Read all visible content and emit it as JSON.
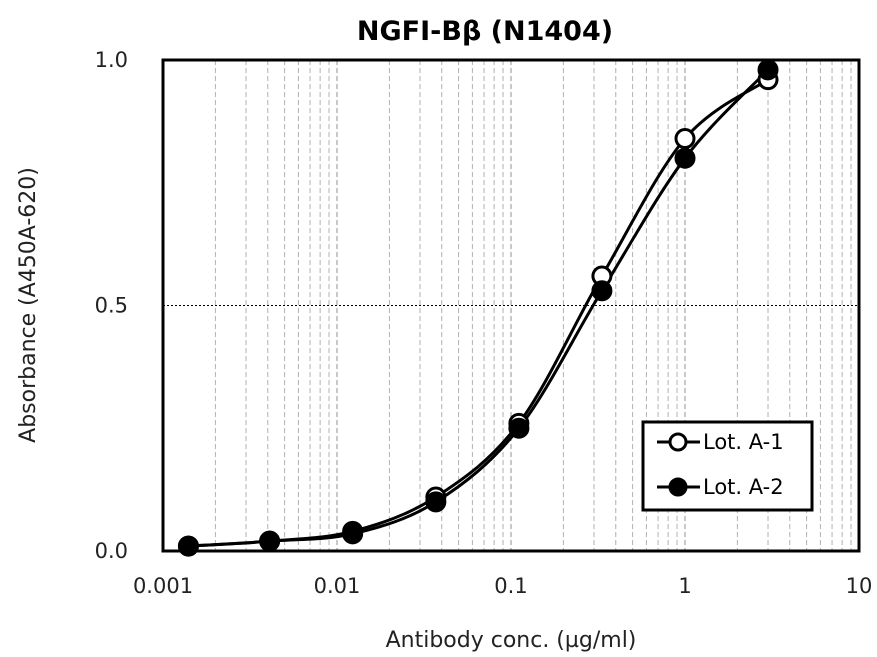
{
  "chart_data": {
    "type": "scatter",
    "title": "NGFI-Bβ (N1404)",
    "xlabel": "Antibody conc. (µg/ml)",
    "ylabel": "Absorbance (A450A-620)",
    "xscale": "log",
    "xlim": [
      0.001,
      10
    ],
    "ylim": [
      0.0,
      1.0
    ],
    "x_ticks": [
      0.001,
      0.01,
      0.1,
      1,
      10
    ],
    "x_tick_labels": [
      "0.001",
      "0.01",
      "0.1",
      "1",
      "10"
    ],
    "y_ticks": [
      0.0,
      0.5,
      1.0
    ],
    "y_tick_labels": [
      "0.0",
      "0.5",
      "1.0"
    ],
    "grid": "vertical log minor gridlines dashed; horizontal dotted line at 0.5",
    "legend_position": "lower-right",
    "series": [
      {
        "name": "Lot. A-1",
        "marker": "open-circle",
        "x": [
          0.0014,
          0.0041,
          0.0123,
          0.037,
          0.111,
          0.333,
          1.0,
          3.0
        ],
        "y": [
          0.01,
          0.02,
          0.04,
          0.11,
          0.26,
          0.56,
          0.84,
          0.96
        ]
      },
      {
        "name": "Lot. A-2",
        "marker": "filled-circle",
        "x": [
          0.0014,
          0.0041,
          0.0123,
          0.037,
          0.111,
          0.333,
          1.0,
          3.0
        ],
        "y": [
          0.01,
          0.02,
          0.035,
          0.1,
          0.25,
          0.53,
          0.8,
          0.98
        ]
      }
    ]
  }
}
